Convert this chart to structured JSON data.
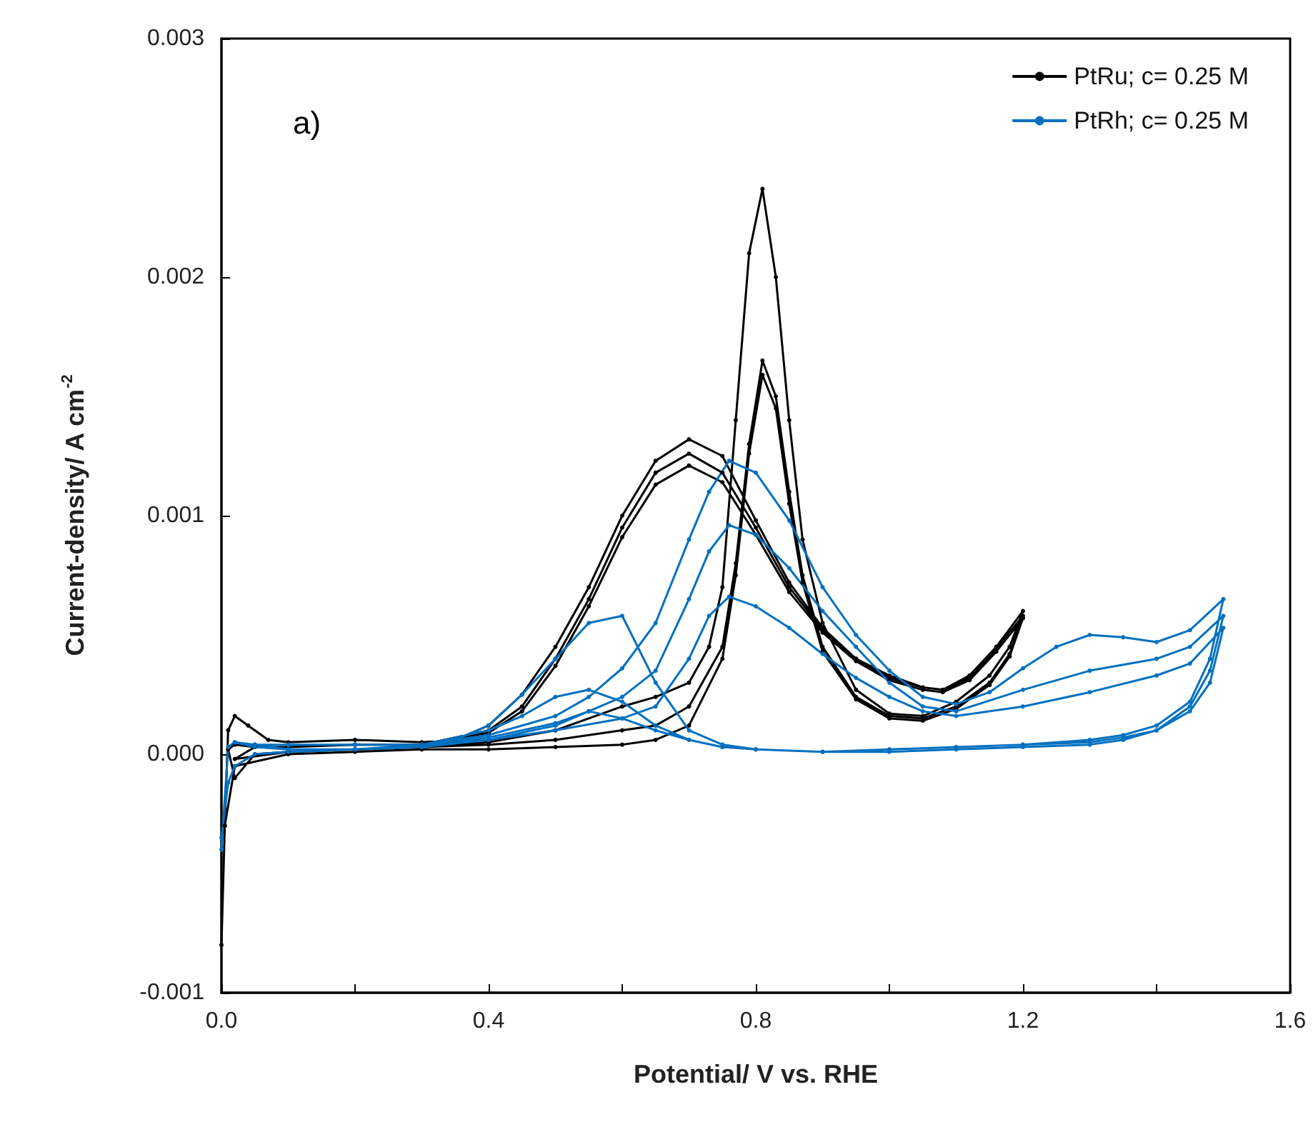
{
  "chart_data": {
    "type": "line",
    "xlabel": "Potential/ V vs. RHE",
    "ylabel": "Current-density/ A cm$^{-2}$",
    "annotations": [
      "a)"
    ],
    "xlim": [
      0,
      1.6
    ],
    "xticks": [
      {
        "value": 0,
        "label": "0.0"
      },
      {
        "value": 0.2,
        "label": null
      },
      0.4,
      {
        "value": 0.6,
        "label": null
      },
      0.8,
      {
        "value": 1.0,
        "label": null
      },
      1.2,
      {
        "value": 1.4,
        "label": null
      },
      1.6
    ],
    "ylim": [
      -0.001,
      0.003
    ],
    "yticks": [
      -0.001,
      {
        "value": 0,
        "label": "0.000"
      },
      0.001,
      0.002,
      0.003
    ],
    "grid": false,
    "legend": "top right",
    "marker": "circle",
    "line_style": "solid",
    "series": [
      {
        "name": "PtRu; c= 0.25 M",
        "color": "#000000",
        "x": [
          0,
          0.005,
          0.01,
          0.02,
          0.04,
          0.07,
          0.1,
          0.2,
          0.3,
          0.35,
          0.4,
          0.45,
          0.5,
          0.55,
          0.6,
          0.65,
          0.7,
          0.75,
          0.8,
          0.85,
          0.9,
          0.95,
          1.0,
          1.05,
          1.08,
          1.12,
          1.16,
          1.2,
          1.18,
          1.15,
          1.1,
          1.05,
          1.0,
          0.95,
          0.9,
          0.87,
          0.85,
          0.83,
          0.81,
          0.79,
          0.77,
          0.75,
          0.73,
          0.7,
          0.65,
          0.6,
          0.5,
          0.4,
          0.3,
          0.2,
          0.1,
          0.05,
          0.02,
          0.01,
          0.02,
          0.05,
          0.1,
          0.2,
          0.3,
          0.4,
          0.45,
          0.5,
          0.55,
          0.6,
          0.65,
          0.7,
          0.75,
          0.8,
          0.85,
          0.9,
          0.95,
          1.0,
          1.05,
          1.08,
          1.12,
          1.16,
          1.2,
          1.18,
          1.15,
          1.1,
          1.05,
          1.0,
          0.95,
          0.9,
          0.87,
          0.85,
          0.83,
          0.81,
          0.79,
          0.77,
          0.75,
          0.7,
          0.65,
          0.6,
          0.5,
          0.4,
          0.3,
          0.2,
          0.1,
          0.02,
          0.05,
          0.1,
          0.2,
          0.3,
          0.4,
          0.45,
          0.5,
          0.55,
          0.6,
          0.65,
          0.7,
          0.75,
          0.8,
          0.85,
          0.9,
          0.95,
          1.0,
          1.05,
          1.08,
          1.12,
          1.16,
          1.2,
          1.18,
          1.15,
          1.1,
          1.05,
          1.0,
          0.95,
          0.9,
          0.87,
          0.85,
          0.83,
          0.81,
          0.79,
          0.77,
          0.75,
          0.7,
          0.65,
          0.6,
          0.5,
          0.4,
          0.3,
          0.2,
          0.1,
          0.02,
          0.005
        ],
        "values": [
          -0.0008,
          -0.0003,
          0.0001,
          0.00016,
          0.00012,
          6e-05,
          5e-05,
          6e-05,
          5e-05,
          6e-05,
          0.00012,
          0.00025,
          0.00045,
          0.0007,
          0.001,
          0.00123,
          0.00132,
          0.00125,
          0.00098,
          0.00072,
          0.00053,
          0.0004,
          0.00033,
          0.00028,
          0.00027,
          0.00033,
          0.00045,
          0.0006,
          0.00045,
          0.00033,
          0.00022,
          0.00016,
          0.00017,
          0.00027,
          0.00055,
          0.0009,
          0.0014,
          0.002,
          0.00237,
          0.0021,
          0.0014,
          0.0007,
          0.00045,
          0.0003,
          0.00024,
          0.0002,
          0.0001,
          5e-05,
          3e-05,
          2e-05,
          1e-05,
          0,
          -0.0001,
          2e-05,
          4e-05,
          3e-05,
          3e-05,
          4e-05,
          4e-05,
          0.0001,
          0.0002,
          0.0004,
          0.00065,
          0.00095,
          0.00118,
          0.00126,
          0.00118,
          0.00095,
          0.0007,
          0.00052,
          0.0004,
          0.00032,
          0.00028,
          0.00027,
          0.00032,
          0.00044,
          0.00058,
          0.00042,
          0.0003,
          0.0002,
          0.00015,
          0.00016,
          0.00024,
          0.00045,
          0.00075,
          0.0011,
          0.0015,
          0.00165,
          0.0013,
          0.0008,
          0.00045,
          0.0002,
          0.00012,
          0.0001,
          6e-05,
          4e-05,
          3e-05,
          2e-05,
          1e-05,
          -2e-05,
          3e-05,
          3e-05,
          4e-05,
          4e-05,
          9e-05,
          0.00018,
          0.00037,
          0.00062,
          0.00091,
          0.00113,
          0.00121,
          0.00114,
          0.00092,
          0.00068,
          0.00051,
          0.00039,
          0.00031,
          0.00027,
          0.00026,
          0.00031,
          0.00043,
          0.00057,
          0.00041,
          0.00029,
          0.00019,
          0.00014,
          0.00015,
          0.00023,
          0.00043,
          0.00072,
          0.00105,
          0.00145,
          0.00159,
          0.00126,
          0.00075,
          0.0004,
          0.00012,
          6e-05,
          4e-05,
          3e-05,
          2e-05,
          2e-05,
          1e-05,
          0,
          -5e-05,
          -0.0003
        ]
      },
      {
        "name": "PtRh; c= 0.25 M",
        "color": "#0070c0",
        "x": [
          0,
          0.01,
          0.02,
          0.05,
          0.1,
          0.2,
          0.3,
          0.4,
          0.5,
          0.55,
          0.6,
          0.65,
          0.7,
          0.73,
          0.76,
          0.8,
          0.85,
          0.9,
          0.95,
          1.0,
          1.05,
          1.1,
          1.15,
          1.2,
          1.25,
          1.3,
          1.35,
          1.4,
          1.45,
          1.5,
          1.48,
          1.45,
          1.4,
          1.35,
          1.3,
          1.2,
          1.1,
          1.0,
          0.9,
          0.8,
          0.75,
          0.7,
          0.65,
          0.6,
          0.55,
          0.5,
          0.45,
          0.4,
          0.35,
          0.3,
          0.2,
          0.1,
          0.05,
          0.02,
          0.05,
          0.1,
          0.2,
          0.3,
          0.4,
          0.5,
          0.55,
          0.6,
          0.65,
          0.7,
          0.73,
          0.76,
          0.8,
          0.85,
          0.9,
          0.95,
          1.0,
          1.05,
          1.1,
          1.2,
          1.3,
          1.4,
          1.45,
          1.5,
          1.48,
          1.45,
          1.4,
          1.35,
          1.3,
          1.2,
          1.1,
          1.0,
          0.9,
          0.8,
          0.75,
          0.7,
          0.65,
          0.6,
          0.55,
          0.5,
          0.45,
          0.4,
          0.3,
          0.2,
          0.1,
          0.05,
          0.1,
          0.2,
          0.3,
          0.4,
          0.5,
          0.6,
          0.65,
          0.7,
          0.73,
          0.76,
          0.8,
          0.85,
          0.9,
          0.95,
          1.0,
          1.05,
          1.1,
          1.2,
          1.3,
          1.4,
          1.45,
          1.5,
          1.48,
          1.45,
          1.4,
          1.35,
          1.3,
          1.2,
          1.1,
          1.0,
          0.9,
          0.8,
          0.75,
          0.7,
          0.65,
          0.6,
          0.55,
          0.5,
          0.4,
          0.3,
          0.2,
          0.1,
          0.05,
          0.02,
          0.01,
          0
        ],
        "values": [
          -0.0004,
          3e-05,
          5e-05,
          4e-05,
          4e-05,
          4e-05,
          4e-05,
          8e-05,
          0.00016,
          0.00024,
          0.00036,
          0.00055,
          0.0009,
          0.0011,
          0.00123,
          0.00118,
          0.00098,
          0.0007,
          0.0005,
          0.00035,
          0.00024,
          0.00021,
          0.00026,
          0.00036,
          0.00045,
          0.0005,
          0.00049,
          0.00047,
          0.00052,
          0.00065,
          0.0004,
          0.00022,
          0.00012,
          8e-05,
          6e-05,
          4e-05,
          3e-05,
          2e-05,
          1e-05,
          2e-05,
          4e-05,
          0.0001,
          0.0003,
          0.00058,
          0.00055,
          0.0004,
          0.00025,
          0.00012,
          6e-05,
          3e-05,
          2e-05,
          2e-05,
          3e-05,
          5e-05,
          4e-05,
          4e-05,
          4e-05,
          4e-05,
          7e-05,
          0.00013,
          0.00018,
          0.00024,
          0.00035,
          0.00065,
          0.00085,
          0.00096,
          0.00092,
          0.00078,
          0.0006,
          0.00045,
          0.0003,
          0.0002,
          0.00018,
          0.00027,
          0.00035,
          0.0004,
          0.00045,
          0.00058,
          0.00035,
          0.0002,
          0.0001,
          7e-05,
          5e-05,
          4e-05,
          3e-05,
          2e-05,
          1e-05,
          2e-05,
          3e-05,
          6e-05,
          0.00012,
          0.00022,
          0.00027,
          0.00024,
          0.00016,
          0.0001,
          4e-05,
          2e-05,
          2e-05,
          4e-05,
          4e-05,
          4e-05,
          4e-05,
          6e-05,
          0.0001,
          0.00015,
          0.0002,
          0.0004,
          0.00058,
          0.00066,
          0.00062,
          0.00053,
          0.00042,
          0.00032,
          0.00024,
          0.00018,
          0.00016,
          0.0002,
          0.00026,
          0.00033,
          0.00038,
          0.00053,
          0.0003,
          0.00018,
          0.0001,
          6e-05,
          4e-05,
          3e-05,
          2e-05,
          1e-05,
          1e-05,
          2e-05,
          3e-05,
          6e-05,
          0.0001,
          0.00015,
          0.00018,
          0.00012,
          6e-05,
          3e-05,
          2e-05,
          1e-05,
          0,
          -5e-05,
          -0.00012,
          -0.00035
        ]
      }
    ]
  }
}
